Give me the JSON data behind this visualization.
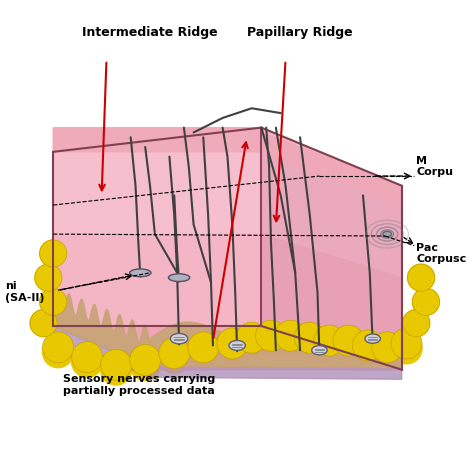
{
  "bg_color": "#ffffff",
  "title": "",
  "labels": {
    "intermediate_ridge": "Intermediate Ridge",
    "papillary_ridge": "Papillary Ridge",
    "meissner": "M\nCorpu",
    "pacinian": "Pac\nCorpusc",
    "ruffini": "ni\n(SA-II)",
    "sensory_nerves": "Sensory nerves carrying\npartially processed data"
  },
  "arrow_color_red": "#cc0000",
  "arrow_color_black": "#000000",
  "skin_top_color": "#d4a96a",
  "skin_dermis_color": "#f0a0b0",
  "skin_epidermis_color": "#c8a0c8",
  "fat_color": "#e8c800",
  "nerve_color": "#404040"
}
